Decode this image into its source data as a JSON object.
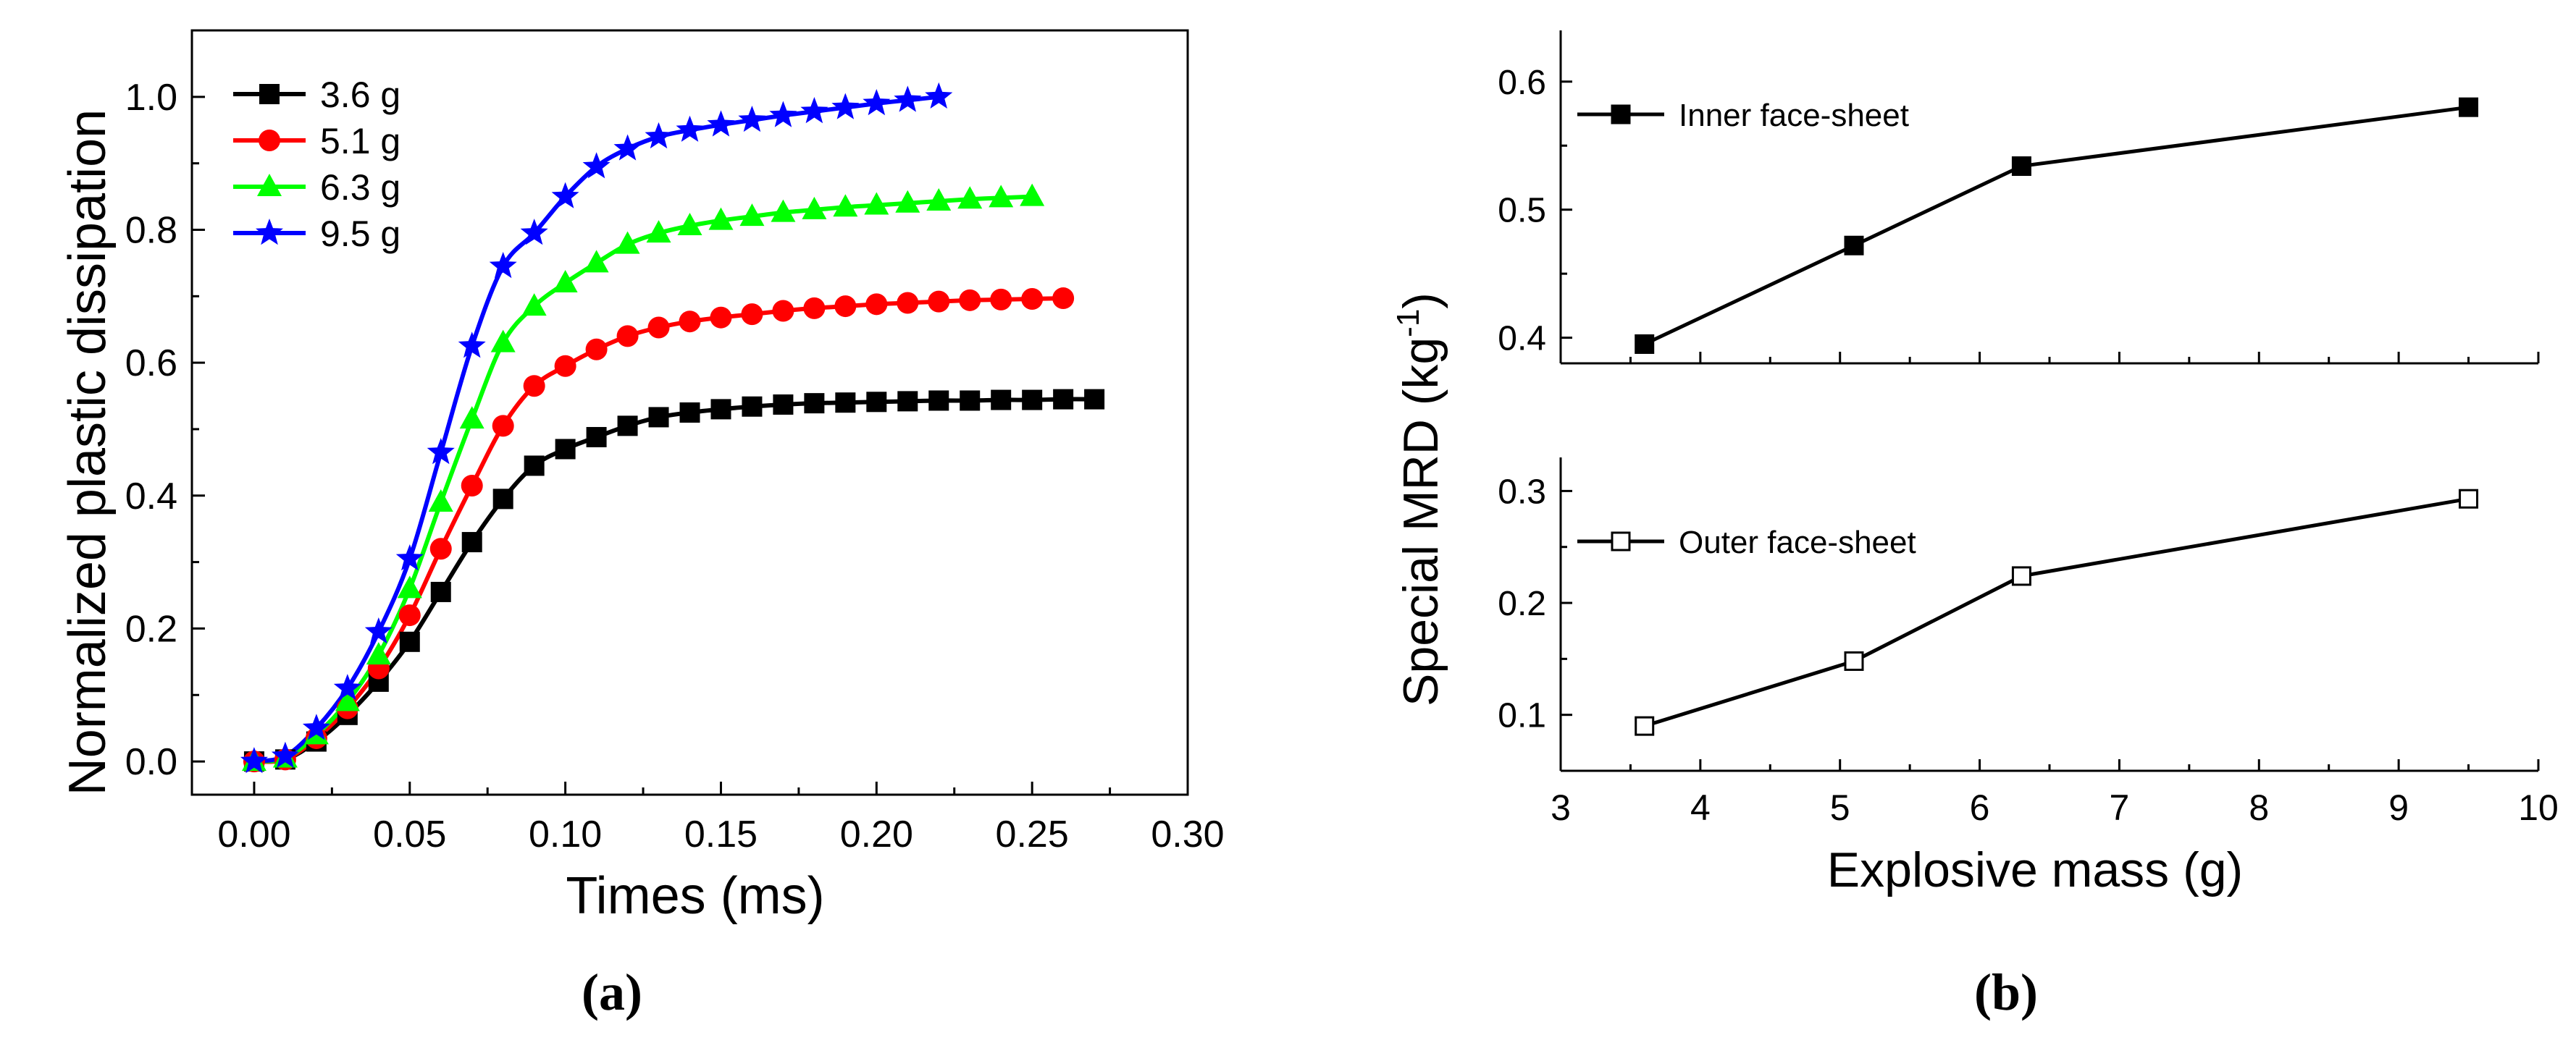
{
  "chart_data": [
    {
      "panel": "a",
      "type": "line",
      "caption": "(a)",
      "title": "",
      "xlabel": "Times (ms)",
      "ylabel": "Normalized plastic dissipation",
      "xlim": [
        -0.02,
        0.3
      ],
      "ylim": [
        -0.05,
        1.1
      ],
      "xticks": [
        "0.00",
        "0.05",
        "0.10",
        "0.15",
        "0.20",
        "0.25",
        "0.30"
      ],
      "yticks": [
        "0.0",
        "0.2",
        "0.4",
        "0.6",
        "0.8",
        "1.0"
      ],
      "grid": false,
      "legend_position": "top-left",
      "series": [
        {
          "name": "3.6 g",
          "color": "#000000",
          "marker": "square",
          "x": [
            0,
            0.01,
            0.02,
            0.03,
            0.04,
            0.05,
            0.06,
            0.07,
            0.08,
            0.09,
            0.1,
            0.11,
            0.12,
            0.13,
            0.14,
            0.15,
            0.16,
            0.17,
            0.18,
            0.19,
            0.2,
            0.21,
            0.22,
            0.23,
            0.24,
            0.25,
            0.26,
            0.27
          ],
          "y": [
            0,
            0.003,
            0.03,
            0.07,
            0.12,
            0.18,
            0.255,
            0.33,
            0.395,
            0.445,
            0.47,
            0.488,
            0.505,
            0.518,
            0.525,
            0.53,
            0.534,
            0.537,
            0.539,
            0.54,
            0.541,
            0.542,
            0.543,
            0.543,
            0.544,
            0.544,
            0.545,
            0.545
          ]
        },
        {
          "name": "5.1 g",
          "color": "#ff0000",
          "marker": "circle",
          "x": [
            0,
            0.01,
            0.02,
            0.03,
            0.04,
            0.05,
            0.06,
            0.07,
            0.08,
            0.09,
            0.1,
            0.11,
            0.12,
            0.13,
            0.14,
            0.15,
            0.16,
            0.17,
            0.18,
            0.19,
            0.2,
            0.21,
            0.22,
            0.23,
            0.24,
            0.25,
            0.26
          ],
          "y": [
            0,
            0.003,
            0.035,
            0.08,
            0.14,
            0.22,
            0.32,
            0.415,
            0.505,
            0.565,
            0.595,
            0.62,
            0.64,
            0.653,
            0.662,
            0.668,
            0.673,
            0.678,
            0.682,
            0.685,
            0.688,
            0.69,
            0.692,
            0.694,
            0.695,
            0.696,
            0.697
          ]
        },
        {
          "name": "6.3 g",
          "color": "#00ff00",
          "marker": "triangle",
          "x": [
            0,
            0.01,
            0.02,
            0.03,
            0.04,
            0.05,
            0.06,
            0.07,
            0.08,
            0.09,
            0.1,
            0.11,
            0.12,
            0.13,
            0.14,
            0.15,
            0.16,
            0.17,
            0.18,
            0.19,
            0.2,
            0.21,
            0.22,
            0.23,
            0.24,
            0.25
          ],
          "y": [
            0,
            0.005,
            0.04,
            0.09,
            0.16,
            0.26,
            0.39,
            0.515,
            0.63,
            0.685,
            0.72,
            0.75,
            0.778,
            0.795,
            0.806,
            0.814,
            0.82,
            0.826,
            0.83,
            0.834,
            0.837,
            0.84,
            0.843,
            0.846,
            0.848,
            0.85
          ]
        },
        {
          "name": "9.5 g",
          "color": "#0000ff",
          "marker": "star",
          "x": [
            0,
            0.01,
            0.02,
            0.03,
            0.04,
            0.05,
            0.06,
            0.07,
            0.08,
            0.09,
            0.1,
            0.11,
            0.12,
            0.13,
            0.14,
            0.15,
            0.16,
            0.17,
            0.18,
            0.19,
            0.2,
            0.21,
            0.22
          ],
          "y": [
            0,
            0.008,
            0.05,
            0.11,
            0.195,
            0.305,
            0.465,
            0.625,
            0.745,
            0.795,
            0.85,
            0.895,
            0.922,
            0.94,
            0.95,
            0.958,
            0.965,
            0.972,
            0.978,
            0.984,
            0.99,
            0.995,
            1.0
          ]
        }
      ]
    },
    {
      "panel": "b",
      "type": "line",
      "caption": "(b)",
      "xlabel": "Explosive mass (g)",
      "ylabel": "Special MRD (kg",
      "ylabel_sup": "-1",
      "ylabel_close": ")",
      "xlim": [
        3,
        10
      ],
      "xticks": [
        "3",
        "4",
        "5",
        "6",
        "7",
        "8",
        "9",
        "10"
      ],
      "grid": false,
      "subplots": [
        {
          "name": "Inner face-sheet",
          "marker": "filled-square",
          "color": "#000000",
          "ylim": [
            0.38,
            0.64
          ],
          "yticks": [
            "0.4",
            "0.5",
            "0.6"
          ],
          "x": [
            3.6,
            5.1,
            6.3,
            9.5
          ],
          "y": [
            0.395,
            0.472,
            0.534,
            0.58
          ]
        },
        {
          "name": "Outer face-sheet",
          "marker": "open-square",
          "color": "#000000",
          "ylim": [
            0.05,
            0.33
          ],
          "yticks": [
            "0.1",
            "0.2",
            "0.3"
          ],
          "x": [
            3.6,
            5.1,
            6.3,
            9.5
          ],
          "y": [
            0.09,
            0.148,
            0.224,
            0.293
          ]
        }
      ]
    }
  ]
}
